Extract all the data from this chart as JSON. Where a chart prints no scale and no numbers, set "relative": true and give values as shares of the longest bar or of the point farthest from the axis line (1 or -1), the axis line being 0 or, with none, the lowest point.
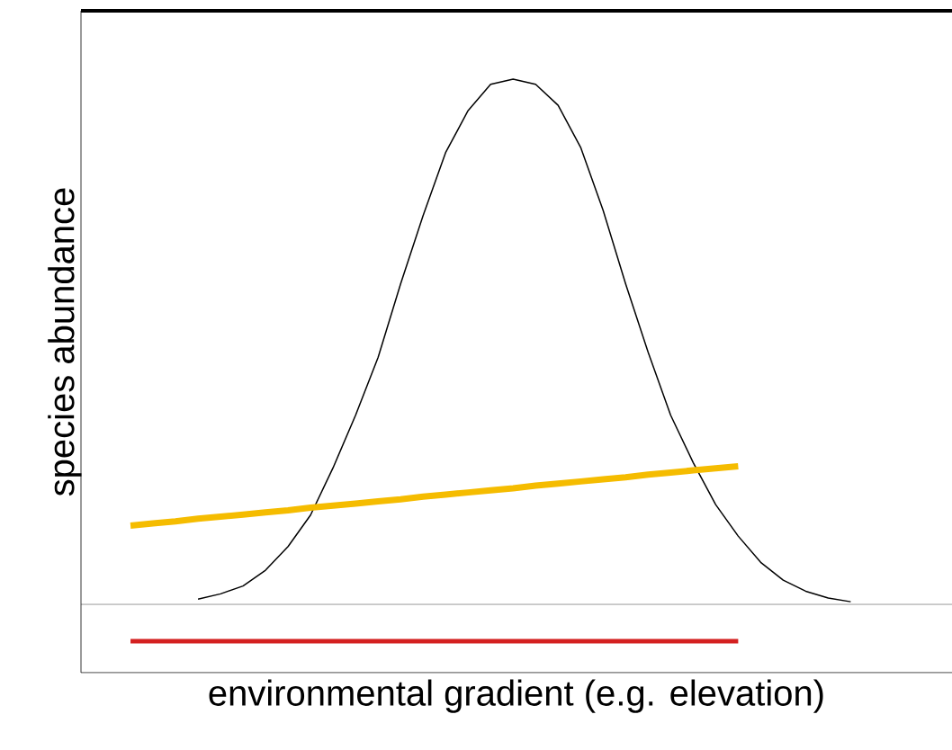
{
  "chart_data": {
    "type": "line",
    "relative": true,
    "xlabel": "environmental gradient (e.g. elevation)",
    "ylabel": "species abundance",
    "marker": "none",
    "categories": [
      null,
      null,
      null,
      null,
      null,
      null,
      null,
      null,
      null,
      null,
      null,
      null,
      null,
      null,
      null,
      null,
      null,
      null,
      null,
      null,
      null,
      null,
      null,
      null,
      null,
      null,
      null,
      null,
      null,
      null,
      null,
      null,
      null
    ],
    "series": [
      {
        "color": "#000000",
        "values": [
          null,
          null,
          null,
          0.01,
          0.02,
          0.035,
          0.065,
          0.11,
          0.17,
          0.26,
          0.36,
          0.47,
          0.61,
          0.74,
          0.86,
          0.94,
          0.99,
          1,
          0.99,
          0.95,
          0.87,
          0.75,
          0.61,
          0.48,
          0.36,
          0.27,
          0.19,
          0.13,
          0.08,
          0.046,
          0.025,
          0.012,
          0.005
        ]
      },
      {
        "color": "#f5bc00",
        "values": [
          0.15,
          0.154,
          0.158,
          0.163,
          0.167,
          0.171,
          0.175,
          0.179,
          0.184,
          0.188,
          0.192,
          0.196,
          0.2,
          0.205,
          0.209,
          0.213,
          0.217,
          0.221,
          0.226,
          0.23,
          0.234,
          0.238,
          0.242,
          0.247,
          0.251,
          0.255,
          0.259,
          0.263,
          null,
          null,
          null,
          null,
          null
        ]
      },
      {
        "color": "#d42020",
        "values": [
          -0.07,
          -0.07,
          -0.07,
          -0.07,
          -0.07,
          -0.07,
          -0.07,
          -0.07,
          -0.07,
          -0.07,
          -0.07,
          -0.07,
          -0.07,
          -0.07,
          -0.07,
          -0.07,
          -0.07,
          -0.07,
          -0.07,
          -0.07,
          -0.07,
          -0.07,
          -0.07,
          -0.07,
          -0.07,
          -0.07,
          -0.07,
          -0.07,
          null,
          null,
          null,
          null,
          null
        ]
      }
    ]
  }
}
